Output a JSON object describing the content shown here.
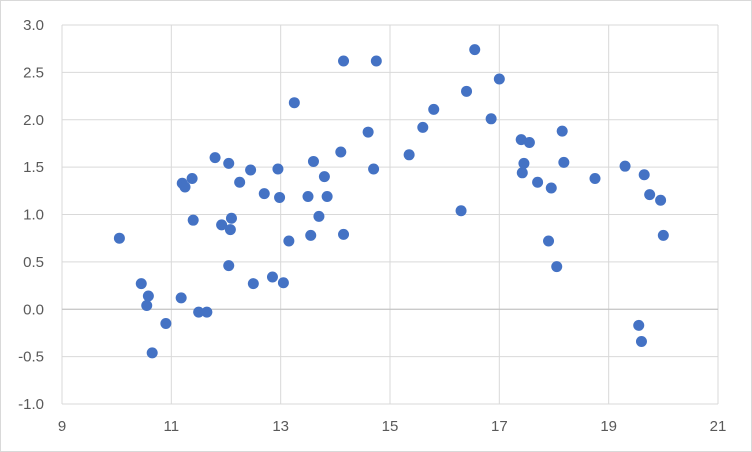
{
  "chart_data": {
    "type": "scatter",
    "title": "",
    "xlabel": "",
    "ylabel": "",
    "xlim": [
      9,
      21
    ],
    "ylim": [
      -1.0,
      3.0
    ],
    "x_ticks": [
      "9",
      "11",
      "13",
      "15",
      "17",
      "19",
      "21"
    ],
    "y_ticks": [
      "-1.0",
      "-0.5",
      "0.0",
      "0.5",
      "1.0",
      "1.5",
      "2.0",
      "2.5",
      "3.0"
    ],
    "x_tick_values": [
      9,
      11,
      13,
      15,
      17,
      19,
      21
    ],
    "y_tick_values": [
      -1.0,
      -0.5,
      0.0,
      0.5,
      1.0,
      1.5,
      2.0,
      2.5,
      3.0
    ],
    "grid": true,
    "legend": "none",
    "marker_color": "#4472c4",
    "grid_color": "#d9d9d9",
    "series": [
      {
        "points": [
          [
            10.05,
            0.75
          ],
          [
            10.45,
            0.27
          ],
          [
            10.55,
            0.04
          ],
          [
            10.58,
            0.14
          ],
          [
            10.65,
            -0.46
          ],
          [
            10.9,
            -0.15
          ],
          [
            11.18,
            0.12
          ],
          [
            11.2,
            1.33
          ],
          [
            11.25,
            1.29
          ],
          [
            11.38,
            1.38
          ],
          [
            11.4,
            0.94
          ],
          [
            11.5,
            -0.03
          ],
          [
            11.65,
            -0.03
          ],
          [
            11.8,
            1.6
          ],
          [
            11.92,
            0.89
          ],
          [
            12.05,
            0.46
          ],
          [
            12.05,
            1.54
          ],
          [
            12.08,
            0.84
          ],
          [
            12.1,
            0.96
          ],
          [
            12.25,
            1.34
          ],
          [
            12.45,
            1.47
          ],
          [
            12.5,
            0.27
          ],
          [
            12.7,
            1.22
          ],
          [
            12.85,
            0.34
          ],
          [
            12.95,
            1.48
          ],
          [
            12.98,
            1.18
          ],
          [
            13.05,
            0.28
          ],
          [
            13.15,
            0.72
          ],
          [
            13.25,
            2.18
          ],
          [
            13.5,
            1.19
          ],
          [
            13.55,
            0.78
          ],
          [
            13.6,
            1.56
          ],
          [
            13.7,
            0.98
          ],
          [
            13.8,
            1.4
          ],
          [
            13.85,
            1.19
          ],
          [
            14.1,
            1.66
          ],
          [
            14.15,
            2.62
          ],
          [
            14.15,
            0.79
          ],
          [
            14.6,
            1.87
          ],
          [
            14.7,
            1.48
          ],
          [
            14.75,
            2.62
          ],
          [
            15.35,
            1.63
          ],
          [
            15.6,
            1.92
          ],
          [
            15.8,
            2.11
          ],
          [
            16.3,
            1.04
          ],
          [
            16.4,
            2.3
          ],
          [
            16.55,
            2.74
          ],
          [
            16.85,
            2.01
          ],
          [
            17.0,
            2.43
          ],
          [
            17.4,
            1.79
          ],
          [
            17.42,
            1.44
          ],
          [
            17.45,
            1.54
          ],
          [
            17.55,
            1.76
          ],
          [
            17.7,
            1.34
          ],
          [
            17.9,
            0.72
          ],
          [
            17.95,
            1.28
          ],
          [
            18.05,
            0.45
          ],
          [
            18.15,
            1.88
          ],
          [
            18.18,
            1.55
          ],
          [
            18.75,
            1.38
          ],
          [
            19.3,
            1.51
          ],
          [
            19.55,
            -0.17
          ],
          [
            19.6,
            -0.34
          ],
          [
            19.65,
            1.42
          ],
          [
            19.75,
            1.21
          ],
          [
            19.95,
            1.15
          ],
          [
            20.0,
            0.78
          ]
        ]
      }
    ]
  }
}
